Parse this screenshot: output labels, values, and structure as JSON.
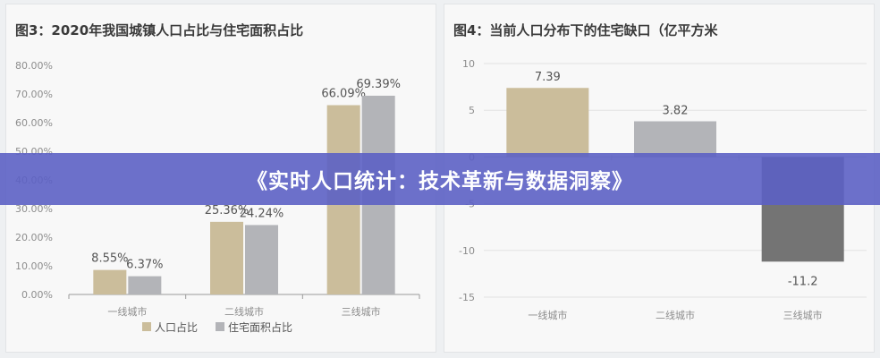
{
  "banner": {
    "title": "《实时人口统计：技术革新与数据洞察》"
  },
  "chart_data": [
    {
      "type": "bar",
      "title": "图3：2020年我国城镇人口占比与住宅面积占比",
      "categories": [
        "一线城市",
        "二线城市",
        "三线城市"
      ],
      "series": [
        {
          "name": "人口占比",
          "values": [
            8.55,
            25.36,
            66.09
          ],
          "labels": [
            "8.55%",
            "25.36%",
            "66.09%"
          ],
          "color": "#cbbd9b"
        },
        {
          "name": "住宅面积占比",
          "values": [
            6.37,
            24.24,
            69.39
          ],
          "labels": [
            "6.37%",
            "24.24%",
            "69.39%"
          ],
          "color": "#b3b4b8"
        }
      ],
      "ylim": [
        0,
        80
      ],
      "yticks": [
        0,
        10,
        20,
        30,
        40,
        50,
        60,
        70,
        80
      ],
      "ytick_labels": [
        "0.00%",
        "10.00%",
        "20.00%",
        "30.00%",
        "40.00%",
        "50.00%",
        "60.00%",
        "70.00%",
        "80.00%"
      ],
      "xlabel": "",
      "ylabel": "",
      "legend": "bottom-center",
      "grid": false
    },
    {
      "type": "bar",
      "title": "图4：当前人口分布下的住宅缺口（亿平方米",
      "categories": [
        "一线城市",
        "二线城市",
        "三线城市"
      ],
      "values": [
        7.39,
        3.82,
        -11.2
      ],
      "labels": [
        "7.39",
        "3.82",
        "-11.2"
      ],
      "colors": [
        "#cbbd9b",
        "#b3b4b8",
        "#747474"
      ],
      "ylim": [
        -15,
        10
      ],
      "yticks": [
        10,
        5,
        0,
        -5,
        -10,
        -15
      ],
      "ytick_labels": [
        "10",
        "5",
        "0",
        "-5",
        "-10",
        "-15"
      ],
      "xlabel": "",
      "ylabel": "",
      "grid": true
    }
  ]
}
